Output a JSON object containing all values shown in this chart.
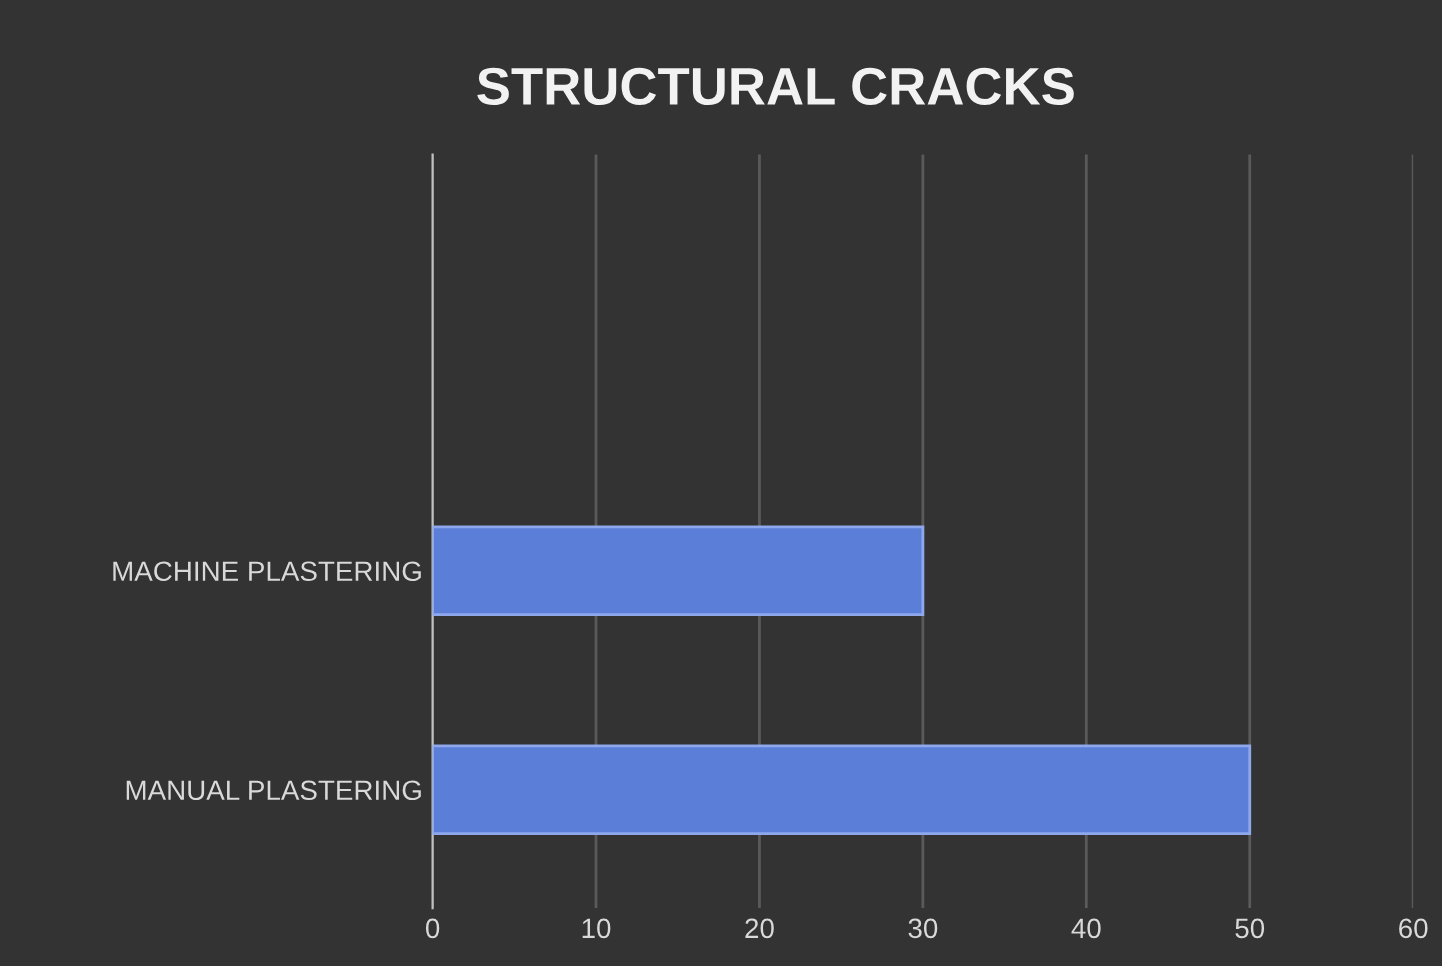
{
  "chart_data": {
    "type": "bar",
    "orientation": "horizontal",
    "title": "STRUCTURAL CRACKS",
    "categories": [
      "MACHINE PLASTERING",
      "MANUAL PLASTERING"
    ],
    "values": [
      30,
      50
    ],
    "color": "#5b7fd9",
    "xlim": [
      0,
      60
    ],
    "xticks": [
      0,
      10,
      20,
      30,
      40,
      50,
      60
    ],
    "grid": "x"
  }
}
